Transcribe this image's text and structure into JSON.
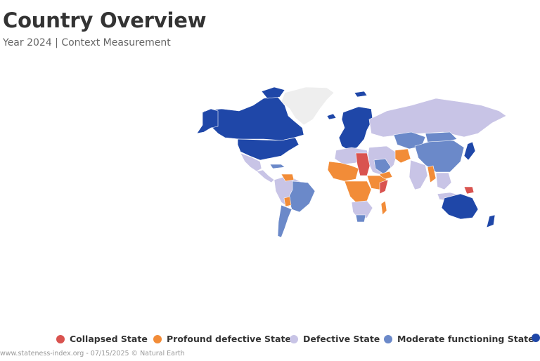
{
  "header": {
    "title": "Country Overview",
    "subtitle": "Year 2024 | Context Measurement"
  },
  "legend": {
    "items": [
      {
        "label": "Collapsed State",
        "color": "#d9534f"
      },
      {
        "label": "Profound defective State",
        "color": "#f28c38"
      },
      {
        "label": "Defective State",
        "color": "#c8c4e6"
      },
      {
        "label": "Moderate functioning State",
        "color": "#6b89c9"
      },
      {
        "label": "",
        "color": "#1f47a8"
      }
    ]
  },
  "credits": "www.stateness-index.org - 07/15/2025 © Natural Earth",
  "colors": {
    "no_data": "#f0f0f0",
    "border": "#ffffff"
  }
}
